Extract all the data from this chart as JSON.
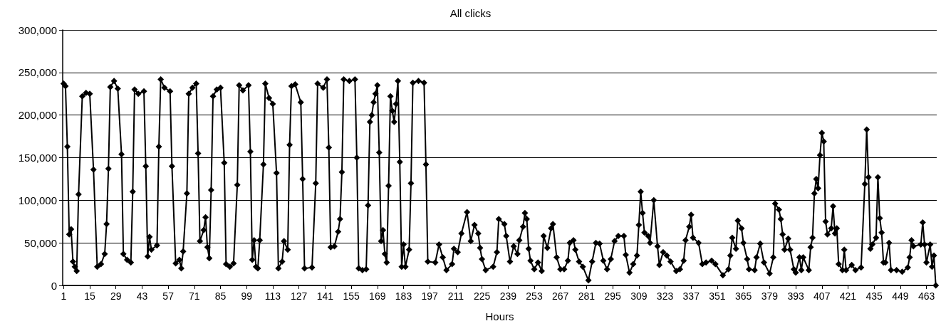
{
  "chart_data": {
    "type": "line",
    "title": "All clicks",
    "xlabel": "Hours",
    "xlim": [
      0.5,
      468.5
    ],
    "xticks": [
      1,
      15,
      29,
      43,
      57,
      71,
      85,
      99,
      113,
      127,
      141,
      155,
      169,
      183,
      197,
      211,
      225,
      239,
      253,
      267,
      281,
      295,
      309,
      323,
      337,
      351,
      365,
      379,
      393,
      407,
      421,
      435,
      449,
      463
    ],
    "ylim": [
      0,
      300000
    ],
    "yticks": [
      0,
      {
        "value": 50000,
        "label": "50,000"
      },
      {
        "value": 100000,
        "label": "100,000"
      },
      {
        "value": 150000,
        "label": "150,000"
      },
      {
        "value": 200000,
        "label": "200,000"
      },
      {
        "value": 250000,
        "label": "250,000"
      },
      {
        "value": 300000,
        "label": "300,000"
      }
    ],
    "grid": "y",
    "marker": "diamond",
    "line_style": "solid",
    "series": [
      {
        "color": "#000000",
        "x": [
          1,
          2,
          3,
          4,
          5,
          6,
          7,
          8,
          9,
          11,
          13,
          15,
          17,
          19,
          21,
          23,
          24,
          25,
          26,
          28,
          30,
          32,
          33,
          35,
          37,
          38,
          39,
          41,
          44,
          45,
          46,
          47,
          48,
          51,
          52,
          53,
          55,
          58,
          59,
          61,
          63,
          64,
          65,
          67,
          68,
          70,
          72,
          73,
          74,
          76,
          77,
          78,
          79,
          80,
          81,
          83,
          85,
          87,
          88,
          90,
          92,
          94,
          95,
          97,
          100,
          101,
          102,
          103,
          104,
          105,
          106,
          108,
          109,
          111,
          113,
          115,
          116,
          118,
          119,
          121,
          122,
          123,
          125,
          128,
          129,
          130,
          134,
          136,
          137,
          140,
          142,
          143,
          144,
          146,
          148,
          149,
          150,
          151,
          154,
          157,
          158,
          159,
          161,
          163,
          164,
          165,
          166,
          167,
          168,
          169,
          170,
          171,
          172,
          173,
          174,
          175,
          176,
          177,
          178,
          179,
          180,
          181,
          182,
          183,
          184,
          186,
          187,
          188,
          191,
          194,
          195,
          196,
          200,
          202,
          204,
          206,
          209,
          210,
          212,
          214,
          217,
          219,
          221,
          223,
          224,
          225,
          227,
          231,
          233,
          234,
          237,
          238,
          240,
          242,
          244,
          245,
          247,
          248,
          249,
          250,
          251,
          253,
          255,
          257,
          258,
          260,
          262,
          263,
          265,
          267,
          269,
          271,
          272,
          274,
          275,
          277,
          279,
          282,
          284,
          286,
          288,
          290,
          292,
          294,
          296,
          298,
          301,
          302,
          304,
          306,
          308,
          309,
          310,
          311,
          312,
          314,
          315,
          317,
          319,
          320,
          322,
          324,
          326,
          329,
          331,
          333,
          334,
          336,
          337,
          338,
          341,
          343,
          345,
          348,
          350,
          354,
          357,
          358,
          359,
          361,
          362,
          364,
          365,
          367,
          368,
          371,
          372,
          374,
          376,
          379,
          381,
          382,
          384,
          385,
          386,
          387,
          389,
          390,
          392,
          393,
          395,
          396,
          397,
          400,
          401,
          402,
          403,
          404,
          405,
          406,
          407,
          408,
          409,
          410,
          412,
          413,
          414,
          415,
          416,
          418,
          419,
          420,
          423,
          425,
          428,
          430,
          431,
          432,
          433,
          434,
          436,
          437,
          438,
          439,
          440,
          441,
          443,
          444,
          447,
          450,
          453,
          454,
          455,
          456,
          460,
          461,
          462,
          463,
          465,
          466,
          467,
          468
        ],
        "values": [
          237000,
          234000,
          163000,
          60000,
          66000,
          28000,
          22000,
          17000,
          107000,
          222000,
          226000,
          225000,
          136000,
          22000,
          25000,
          37000,
          72000,
          137000,
          233000,
          240000,
          231000,
          154000,
          37000,
          30000,
          27000,
          110000,
          230000,
          225000,
          228000,
          140000,
          34000,
          57000,
          42000,
          47000,
          163000,
          242000,
          232000,
          228000,
          140000,
          26000,
          30000,
          20000,
          40000,
          108000,
          225000,
          232000,
          237000,
          155000,
          52000,
          65000,
          80000,
          45000,
          32000,
          112000,
          222000,
          230000,
          232000,
          144000,
          25000,
          22000,
          26000,
          118000,
          235000,
          229000,
          235000,
          157000,
          30000,
          53000,
          22000,
          20000,
          53000,
          142000,
          237000,
          220000,
          213000,
          132000,
          20000,
          28000,
          52000,
          42000,
          165000,
          234000,
          236000,
          215000,
          125000,
          20000,
          21000,
          120000,
          237000,
          232000,
          242000,
          162000,
          45000,
          46000,
          63000,
          78000,
          133000,
          242000,
          240000,
          242000,
          150000,
          20000,
          18000,
          19000,
          94000,
          192000,
          200000,
          215000,
          225000,
          235000,
          156000,
          52000,
          65000,
          37000,
          27000,
          117000,
          222000,
          205000,
          192000,
          213000,
          240000,
          145000,
          22000,
          48000,
          22000,
          42000,
          120000,
          238000,
          240000,
          238000,
          142000,
          28000,
          27000,
          48000,
          33000,
          18000,
          25000,
          43000,
          39000,
          61000,
          86000,
          52000,
          71000,
          61000,
          44000,
          31000,
          18000,
          22000,
          39000,
          78000,
          72000,
          58000,
          28000,
          46000,
          37000,
          53000,
          69000,
          85000,
          78000,
          43000,
          29000,
          19000,
          27000,
          17000,
          58000,
          44000,
          67000,
          72000,
          33000,
          19000,
          19000,
          29000,
          50000,
          53000,
          42000,
          28000,
          22000,
          6000,
          28000,
          50000,
          49000,
          29000,
          19000,
          31000,
          52000,
          58000,
          58000,
          36000,
          15000,
          25000,
          35000,
          71000,
          110000,
          85000,
          62000,
          58000,
          50000,
          100000,
          46000,
          24000,
          39000,
          35000,
          28000,
          17000,
          19000,
          29000,
          53000,
          69000,
          83000,
          56000,
          50000,
          25000,
          27000,
          29000,
          25000,
          12000,
          19000,
          35000,
          56000,
          43000,
          76000,
          67000,
          50000,
          31000,
          19000,
          18000,
          33000,
          49000,
          27000,
          14000,
          33000,
          96000,
          89000,
          78000,
          60000,
          42000,
          55000,
          42000,
          19000,
          15000,
          33000,
          18000,
          33000,
          18000,
          45000,
          56000,
          108000,
          125000,
          114000,
          153000,
          179000,
          169000,
          75000,
          60000,
          67000,
          93000,
          61000,
          67000,
          25000,
          18000,
          42000,
          18000,
          24000,
          18000,
          21000,
          119000,
          183000,
          127000,
          43000,
          48000,
          56000,
          127000,
          79000,
          62000,
          27000,
          27000,
          50000,
          18000,
          18000,
          16000,
          21000,
          33000,
          53000,
          46000,
          48000,
          74000,
          48000,
          27000,
          48000,
          22000,
          35000,
          0
        ]
      }
    ]
  }
}
